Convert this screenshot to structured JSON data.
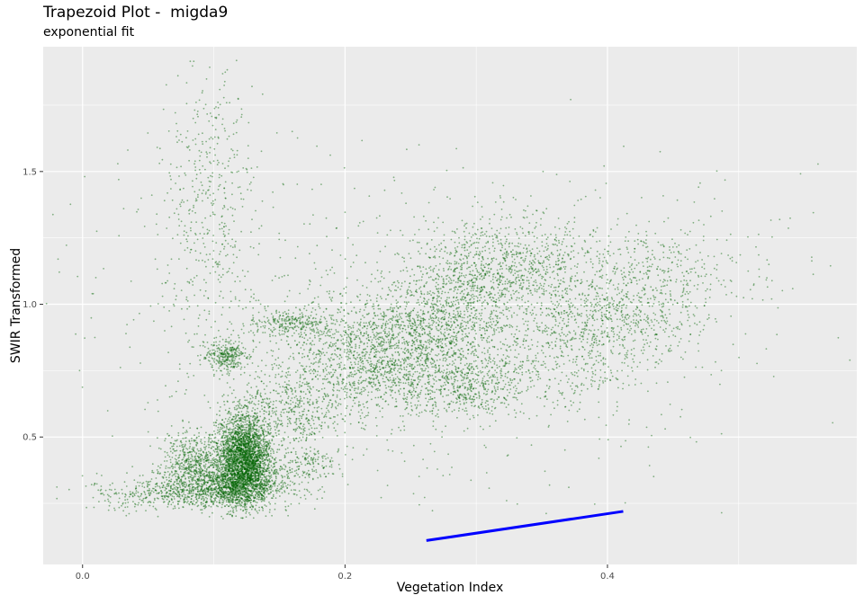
{
  "chart_data": {
    "type": "scatter",
    "title": "Trapezoid Plot -  migda9",
    "subtitle": "exponential fit",
    "xlabel": "Vegetation Index",
    "ylabel": "SWIR Transformed",
    "xlim": [
      -0.03,
      0.59
    ],
    "ylim": [
      0.02,
      1.97
    ],
    "x_ticks": [
      0.0,
      0.2,
      0.4
    ],
    "x_tick_labels": [
      "0.0",
      "0.2",
      "0.4"
    ],
    "y_ticks": [
      0.5,
      1.0,
      1.5
    ],
    "y_tick_labels": [
      "0.5",
      "1.0",
      "1.5"
    ],
    "grid": true,
    "colors": {
      "panel": "#EBEBEB",
      "grid": "#FFFFFF",
      "points": "#006400",
      "fit_line": "#0000FF"
    },
    "point_clusters": [
      {
        "x": 0.123,
        "y": 0.42,
        "sx": 0.01,
        "sy": 0.085,
        "n": 3000
      },
      {
        "x": 0.11,
        "y": 0.32,
        "sx": 0.025,
        "sy": 0.04,
        "n": 1400
      },
      {
        "x": 0.085,
        "y": 0.42,
        "sx": 0.012,
        "sy": 0.05,
        "n": 450
      },
      {
        "x": 0.11,
        "y": 0.8,
        "sx": 0.008,
        "sy": 0.03,
        "n": 300
      },
      {
        "x": 0.16,
        "y": 0.6,
        "sx": 0.018,
        "sy": 0.08,
        "n": 400
      },
      {
        "x": 0.175,
        "y": 0.4,
        "sx": 0.01,
        "sy": 0.025,
        "n": 120
      },
      {
        "x": 0.16,
        "y": 0.93,
        "sx": 0.015,
        "sy": 0.025,
        "n": 250
      },
      {
        "x": 0.06,
        "y": 0.28,
        "sx": 0.03,
        "sy": 0.03,
        "n": 300
      },
      {
        "x": 0.095,
        "y": 1.4,
        "sx": 0.018,
        "sy": 0.28,
        "n": 450
      },
      {
        "x": 0.21,
        "y": 0.78,
        "sx": 0.03,
        "sy": 0.11,
        "n": 900
      },
      {
        "x": 0.25,
        "y": 0.88,
        "sx": 0.025,
        "sy": 0.09,
        "n": 800
      },
      {
        "x": 0.29,
        "y": 0.7,
        "sx": 0.03,
        "sy": 0.06,
        "n": 600
      },
      {
        "x": 0.29,
        "y": 1.05,
        "sx": 0.022,
        "sy": 0.12,
        "n": 700
      },
      {
        "x": 0.34,
        "y": 1.15,
        "sx": 0.03,
        "sy": 0.09,
        "n": 600
      },
      {
        "x": 0.37,
        "y": 0.85,
        "sx": 0.04,
        "sy": 0.12,
        "n": 500
      },
      {
        "x": 0.4,
        "y": 0.95,
        "sx": 0.03,
        "sy": 0.08,
        "n": 400
      },
      {
        "x": 0.44,
        "y": 1.1,
        "sx": 0.03,
        "sy": 0.12,
        "n": 350
      },
      {
        "x": 0.5,
        "y": 1.15,
        "sx": 0.03,
        "sy": 0.13,
        "n": 50
      },
      {
        "x": 0.25,
        "y": 0.9,
        "sx": 0.12,
        "sy": 0.3,
        "n": 900
      }
    ],
    "fit_line": {
      "x": [
        0.262,
        0.412
      ],
      "y": [
        0.11,
        0.22
      ]
    }
  }
}
